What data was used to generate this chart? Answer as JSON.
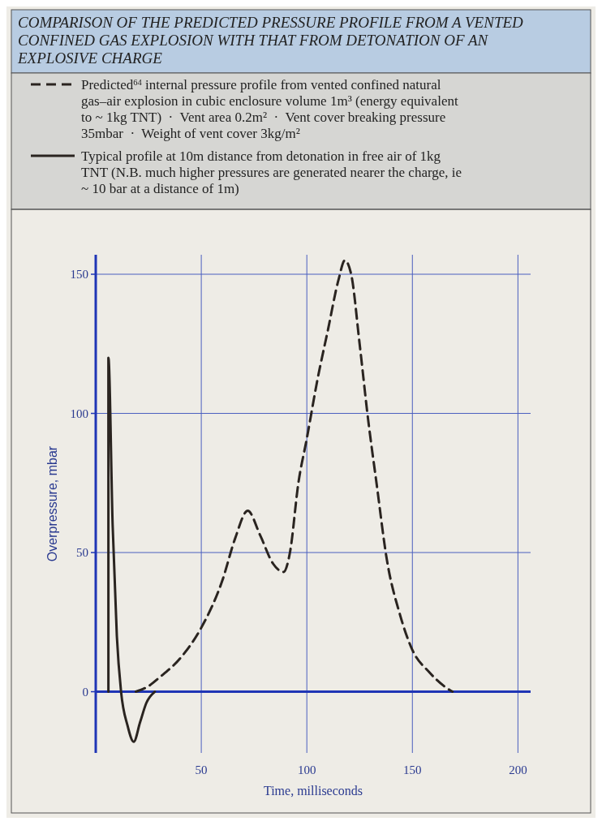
{
  "chart_data": {
    "type": "line",
    "title": "COMPARISON OF THE PREDICTED PRESSURE PROFILE FROM A VENTED CONFINED GAS EXPLOSION WITH THAT FROM DETONATION OF AN EXPLOSIVE CHARGE",
    "xlabel": "Time, milliseconds",
    "ylabel": "Overpressure, mbar",
    "xlim": [
      0,
      206
    ],
    "ylim": [
      -22,
      157
    ],
    "xticks": [
      50,
      100,
      150,
      200
    ],
    "yticks": [
      0,
      50,
      100,
      150
    ],
    "grid": true,
    "ref_lines": [
      {
        "axis": "y",
        "value": 0,
        "color": "#1f35b5"
      }
    ],
    "series": [
      {
        "name": "Predicted$^{64}$ internal pressure profile from vented confined natural gas–air explosion in cubic enclosure volume 1m³ (energy equivalent to ~ 1kg TNT)  ·  Vent area 0.2m²  ·  Vent cover breaking pressure 35mbar  ·  Weight of vent cover 3kg/m²",
        "color": "#2a2420",
        "line_style": "dashed",
        "x": [
          19,
          25,
          30,
          40,
          50,
          60,
          66,
          72,
          78,
          84,
          89,
          92,
          96,
          100,
          105,
          110,
          115,
          118,
          121,
          125,
          129,
          133,
          138,
          144,
          150,
          158,
          165,
          169
        ],
        "values": [
          0,
          2,
          5,
          12,
          23,
          40,
          55,
          65,
          56,
          46,
          43,
          50,
          75,
          91,
          112,
          130,
          148,
          155,
          150,
          125,
          98,
          75,
          47,
          28,
          15,
          7,
          2,
          0
        ]
      },
      {
        "name": "Typical profile at 10m distance from detonation in free air of 1kg TNT (N.B. much higher pressures are generated nearer the charge, ie ~ 10 bar at a distance of 1m)",
        "color": "#2a2420",
        "line_style": "solid",
        "x": [
          6,
          6,
          8,
          10,
          12,
          15,
          18,
          21,
          24,
          28
        ],
        "values": [
          0,
          120,
          60,
          20,
          0,
          -12,
          -18,
          -11,
          -4,
          0
        ]
      }
    ]
  }
}
